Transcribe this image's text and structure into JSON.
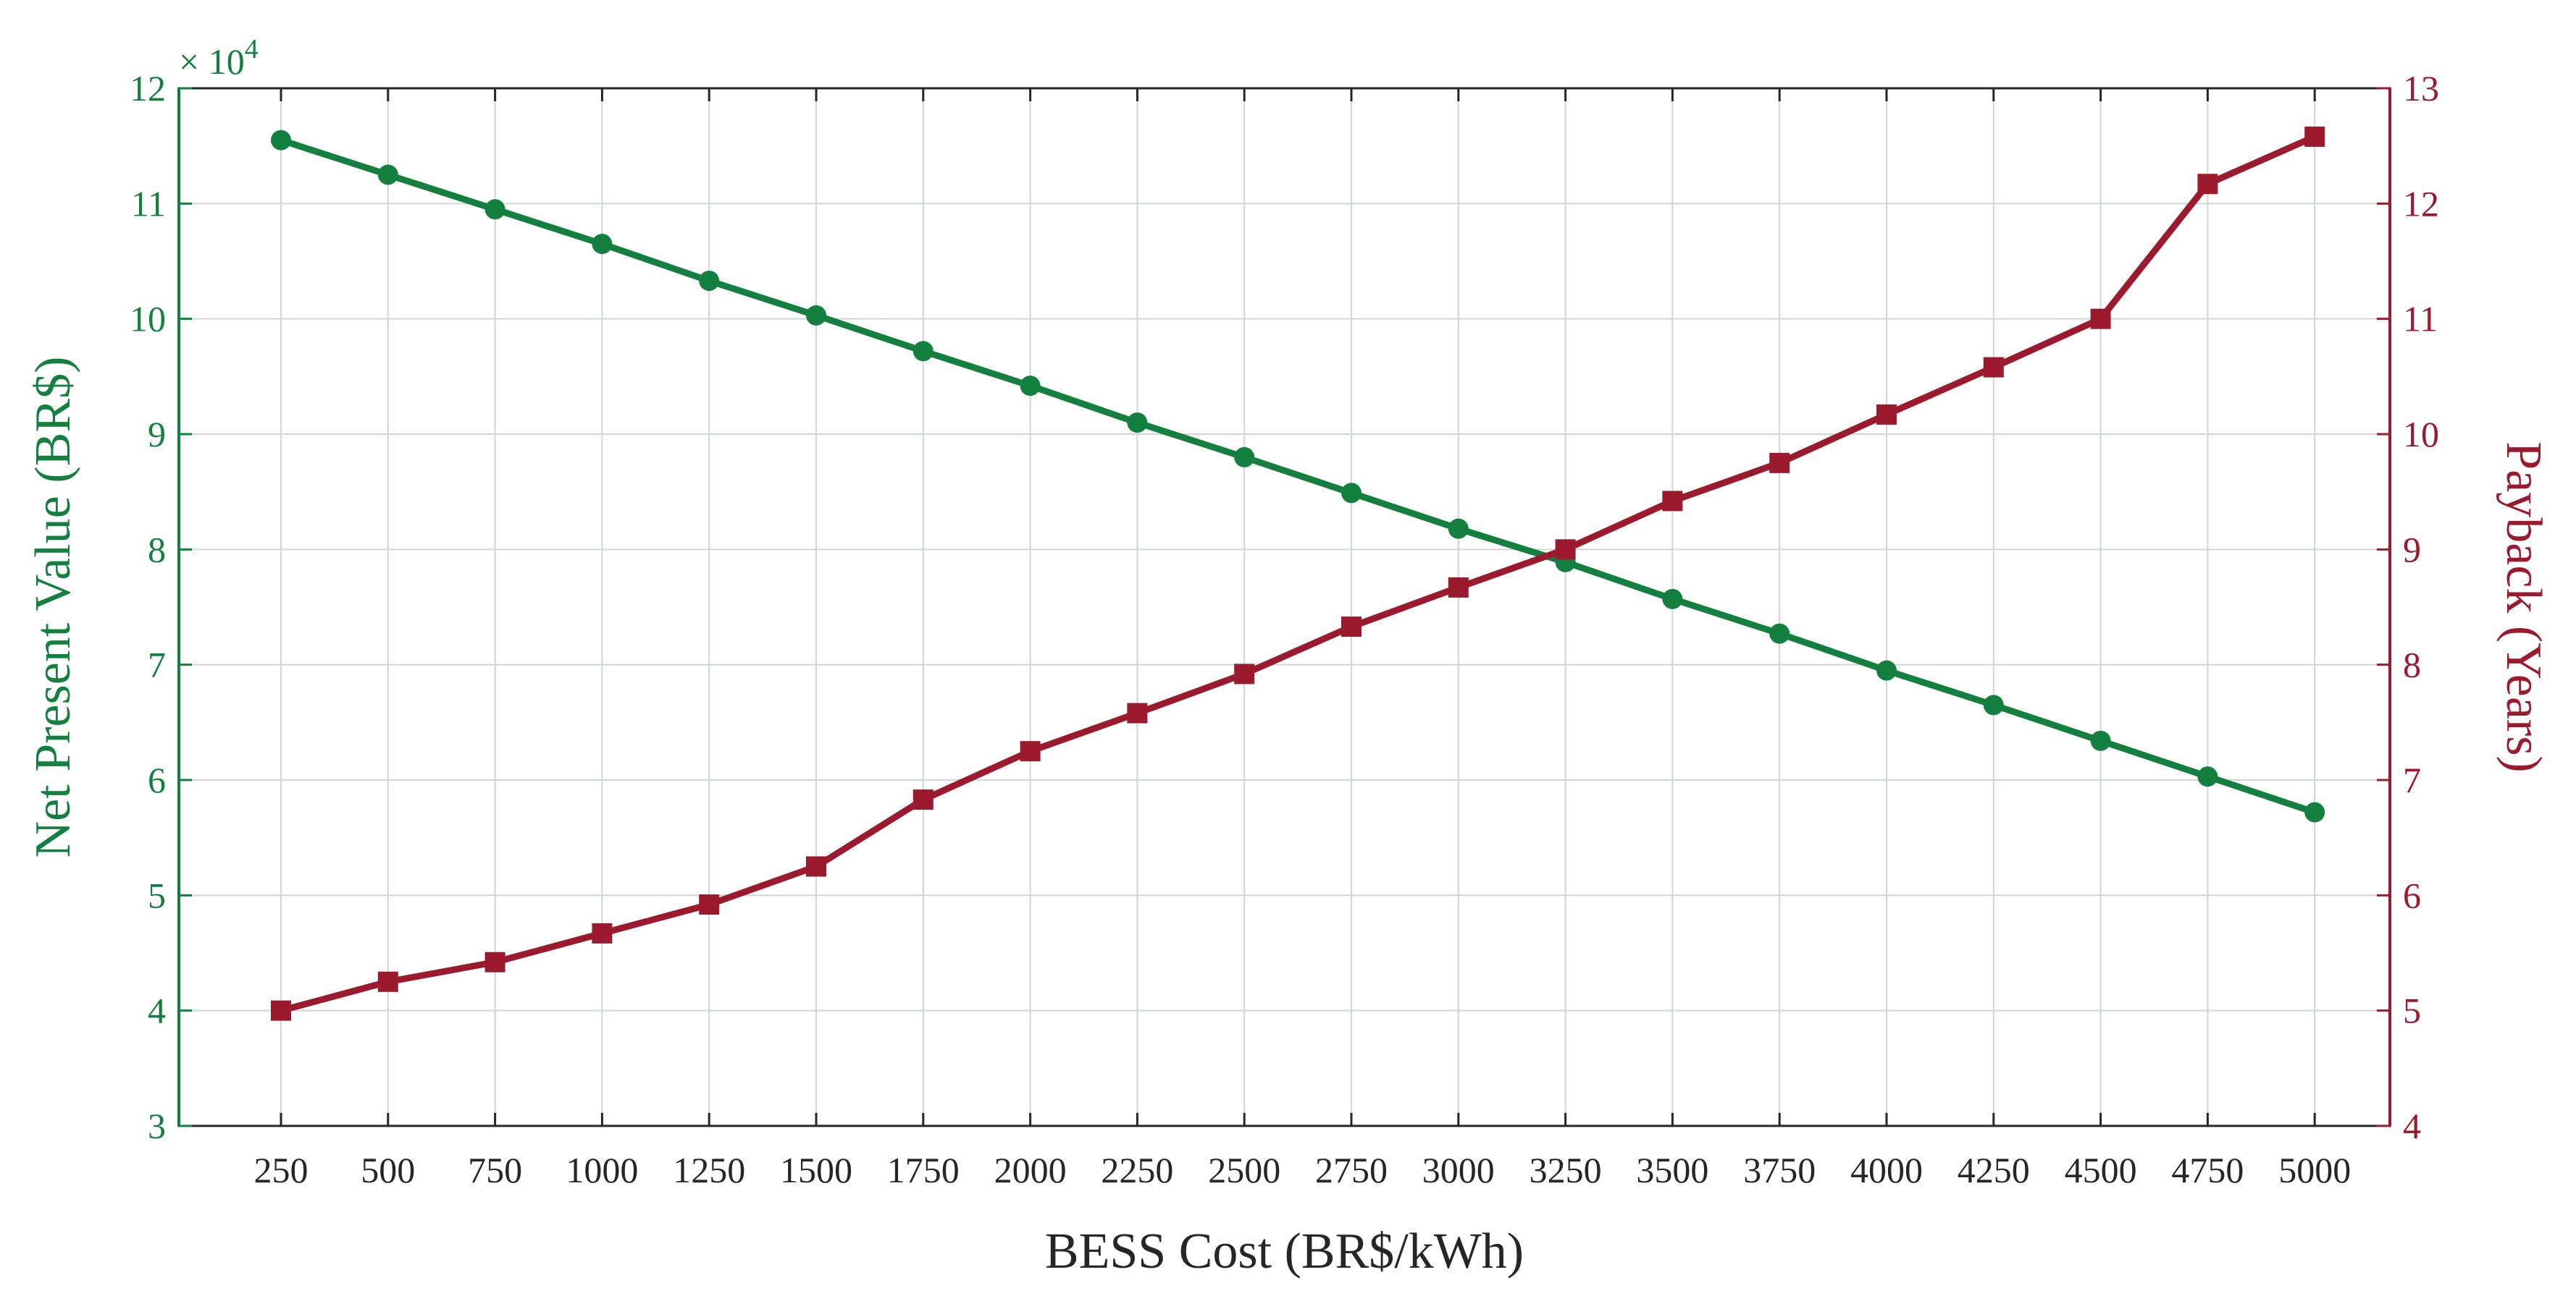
{
  "chart_data": {
    "type": "line",
    "categories": [
      "250",
      "500",
      "750",
      "1000",
      "1250",
      "1500",
      "1750",
      "2000",
      "2250",
      "2500",
      "2750",
      "3000",
      "3250",
      "3500",
      "3750",
      "4000",
      "4250",
      "4500",
      "4750",
      "5000"
    ],
    "xlabel": "BESS Cost (BR$/kWh)",
    "ylabel_left": "Net Present Value (BR$)",
    "ylabel_right": "Payback (Years)",
    "left_exponent_base": "× 10",
    "left_exponent_power": "4",
    "ylim_left": [
      3,
      12
    ],
    "ylim_right": [
      4,
      13
    ],
    "yticks_left": [
      "3",
      "4",
      "5",
      "6",
      "7",
      "8",
      "9",
      "10",
      "11",
      "12"
    ],
    "yticks_right": [
      "4",
      "5",
      "6",
      "7",
      "8",
      "9",
      "10",
      "11",
      "12",
      "13"
    ],
    "grid": true,
    "colors": {
      "npv": "#13803f",
      "payback": "#9c1a2e",
      "grid": "#cfd6d8",
      "axis": "#262626"
    },
    "series": [
      {
        "name": "Net Present Value",
        "axis": "left",
        "marker": "circle",
        "values": [
          11.55,
          11.25,
          10.95,
          10.65,
          10.33,
          10.03,
          9.72,
          9.42,
          9.1,
          8.8,
          8.49,
          8.18,
          7.89,
          7.57,
          7.27,
          6.95,
          6.65,
          6.34,
          6.03,
          5.72
        ]
      },
      {
        "name": "Payback",
        "axis": "right",
        "marker": "square",
        "values": [
          5.0,
          5.25,
          5.42,
          5.67,
          5.92,
          6.25,
          6.83,
          7.25,
          7.58,
          7.92,
          8.33,
          8.67,
          9.0,
          9.42,
          9.75,
          10.17,
          10.58,
          11.0,
          12.17,
          12.58
        ]
      }
    ]
  }
}
